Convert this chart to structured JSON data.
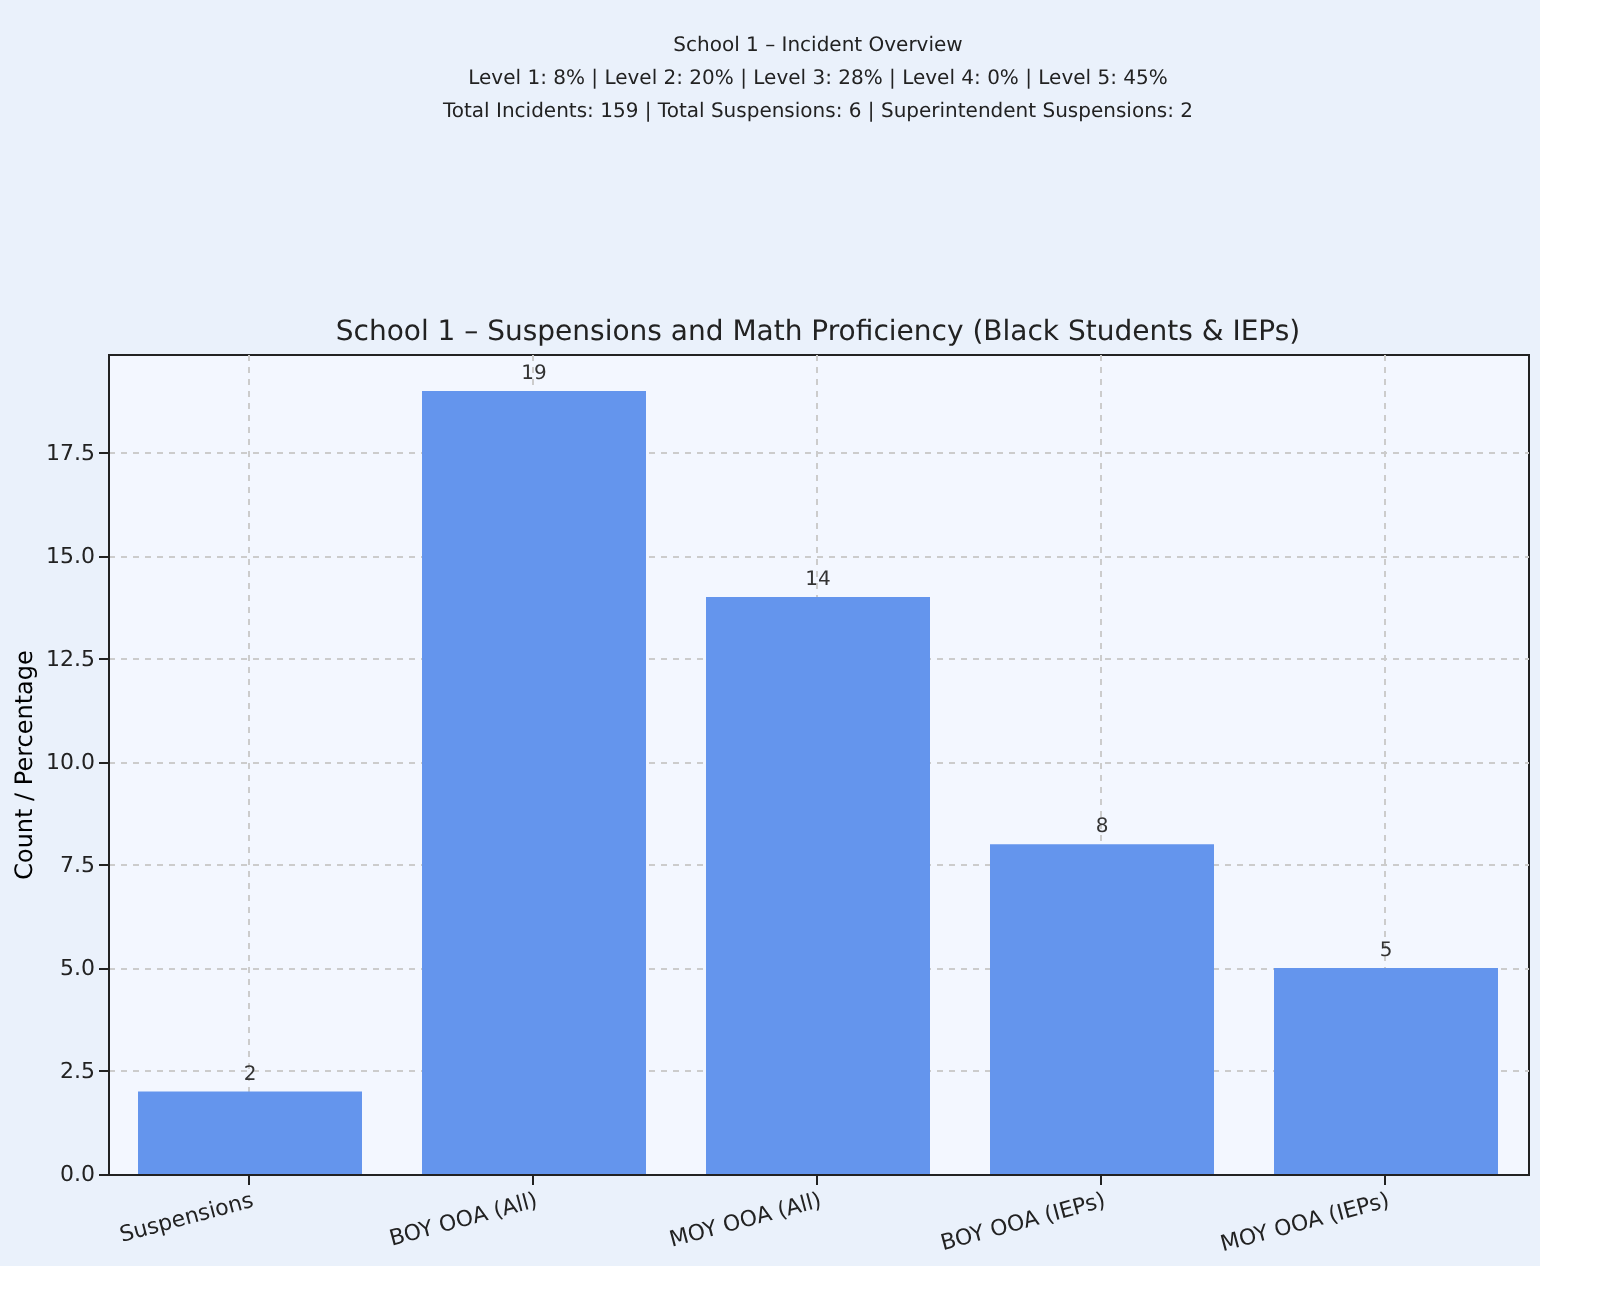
{
  "chart_data": {
    "type": "bar",
    "title": "School 1 – Suspensions and Math Proficiency (Black Students & IEPs)",
    "annotations": [
      "School 1 – Incident Overview",
      "Level 1: 8%  |  Level 2: 20%  |  Level 3: 28%  |  Level 4: 0%  |  Level 5: 45%",
      "Total Incidents: 159  |  Total Suspensions: 6  |  Superintendent Suspensions: 2"
    ],
    "ylabel": "Count / Percentage",
    "categories": [
      "Suspensions",
      "BOY OOA (All)",
      "MOY OOA (All)",
      "BOY OOA (IEPs)",
      "MOY OOA (IEPs)"
    ],
    "values": [
      2,
      19,
      14,
      8,
      5
    ],
    "color": "#6495ed",
    "data_labels": true,
    "ylim": [
      0,
      19.9
    ],
    "yticks": [
      {
        "value": 0,
        "label": "0.0"
      },
      2.5,
      {
        "value": 5,
        "label": "5.0"
      },
      7.5,
      {
        "value": 10,
        "label": "10.0"
      },
      12.5,
      {
        "value": 15,
        "label": "15.0"
      },
      17.5
    ],
    "grid": true
  }
}
